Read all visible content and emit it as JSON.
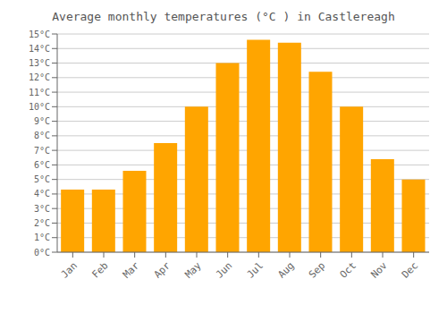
{
  "chart_data": {
    "type": "bar",
    "title": "Average monthly temperatures (°C ) in Castlereagh",
    "categories": [
      "Jan",
      "Feb",
      "Mar",
      "Apr",
      "May",
      "Jun",
      "Jul",
      "Aug",
      "Sep",
      "Oct",
      "Nov",
      "Dec"
    ],
    "values": [
      4.3,
      4.3,
      5.6,
      7.5,
      10.0,
      13.0,
      14.6,
      14.4,
      12.4,
      10.0,
      6.4,
      5.0
    ],
    "color": "#FFA500",
    "ylim": [
      0,
      15
    ],
    "yticks": [
      {
        "value": 0,
        "label": "0°C"
      },
      {
        "value": 1,
        "label": "1°C"
      },
      {
        "value": 2,
        "label": "2°C"
      },
      {
        "value": 3,
        "label": "3°C"
      },
      {
        "value": 4,
        "label": "4°C"
      },
      {
        "value": 5,
        "label": "5°C"
      },
      {
        "value": 6,
        "label": "6°C"
      },
      {
        "value": 7,
        "label": "7°C"
      },
      {
        "value": 8,
        "label": "8°C"
      },
      {
        "value": 9,
        "label": "9°C"
      },
      {
        "value": 10,
        "label": "10°C"
      },
      {
        "value": 11,
        "label": "11°C"
      },
      {
        "value": 12,
        "label": "12°C"
      },
      {
        "value": 13,
        "label": "13°C"
      },
      {
        "value": 14,
        "label": "14°C"
      },
      {
        "value": 15,
        "label": "15°C"
      }
    ],
    "grid": true
  }
}
